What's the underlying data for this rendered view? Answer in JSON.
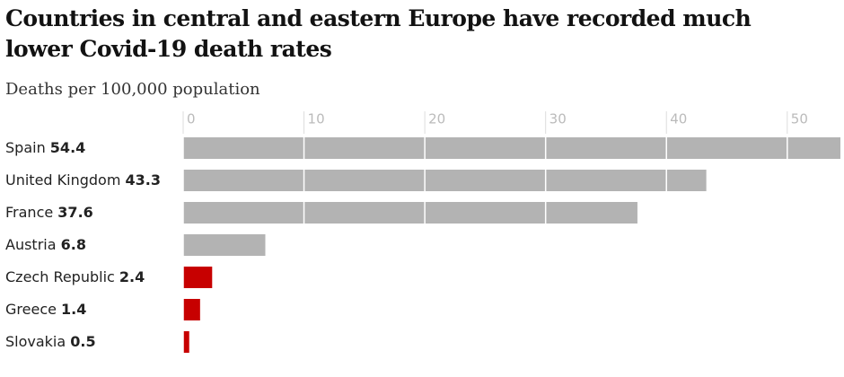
{
  "chart_data": {
    "type": "barh",
    "title": "Countries in central and eastern Europe have recorded much lower Covid-19 death rates",
    "subtitle": "Deaths per 100,000 population",
    "categories": [
      "Spain",
      "United Kingdom",
      "France",
      "Austria",
      "Czech Republic",
      "Greece",
      "Slovakia"
    ],
    "values": [
      54.4,
      43.3,
      37.6,
      6.8,
      2.4,
      1.4,
      0.5
    ],
    "colors": [
      "#b3b3b3",
      "#b3b3b3",
      "#b3b3b3",
      "#b3b3b3",
      "#c70000",
      "#c70000",
      "#c70000"
    ],
    "xlim": [
      0,
      54.4
    ],
    "xticks": [
      0,
      10,
      20,
      30,
      40,
      50
    ],
    "grid": true
  }
}
